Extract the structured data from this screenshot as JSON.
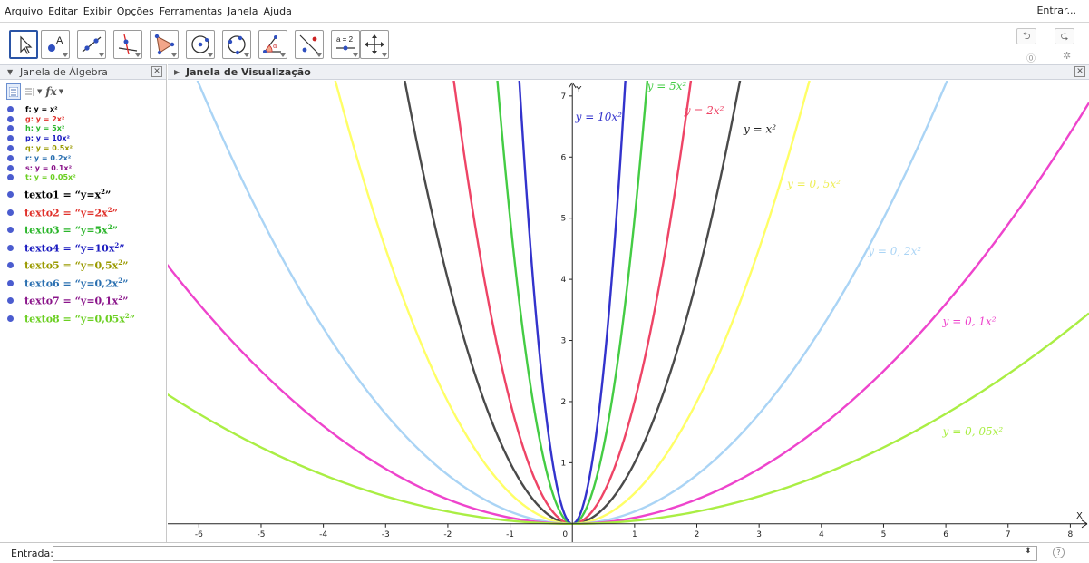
{
  "menu": [
    "Arquivo",
    "Editar",
    "Exibir",
    "Opções",
    "Ferramentas",
    "Janela",
    "Ajuda"
  ],
  "login_label": "Entrar...",
  "toolbar": {
    "tools": [
      "move-tool",
      "point-tool",
      "line-tool",
      "perpendicular-tool",
      "polygon-tool",
      "circle-tool",
      "circle-three-points-tool",
      "angle-tool",
      "reflect-tool",
      "slider-tool",
      "move-view-tool"
    ],
    "slider_label": "a = 2",
    "undo_icon": "undo-icon",
    "redo_icon": "redo-icon"
  },
  "algebra": {
    "title": "Janela de Álgebra",
    "fx_label": "fx",
    "functions": [
      {
        "text": "f: y = x²",
        "color": "#000000"
      },
      {
        "text": "g: y = 2x²",
        "color": "#e0302a"
      },
      {
        "text": "h: y = 5x²",
        "color": "#2bb52b"
      },
      {
        "text": "p: y = 10x²",
        "color": "#1a1abf"
      },
      {
        "text": "q: y = 0.5x²",
        "color": "#9a9a00"
      },
      {
        "text": "r: y = 0.2x²",
        "color": "#2a6fb0"
      },
      {
        "text": "s: y = 0.1x²",
        "color": "#8a148a"
      },
      {
        "text": "t: y = 0.05x²",
        "color": "#6bcf22"
      }
    ],
    "texts": [
      {
        "name": "texto1",
        "value": "y=x",
        "color": "#000000"
      },
      {
        "name": "texto2",
        "value": "y=2x",
        "color": "#e0302a"
      },
      {
        "name": "texto3",
        "value": "y=5x",
        "color": "#2bb52b"
      },
      {
        "name": "texto4",
        "value": "y=10x",
        "color": "#1a1abf"
      },
      {
        "name": "texto5",
        "value": "y=0,5x",
        "color": "#9a9a00"
      },
      {
        "name": "texto6",
        "value": "y=0,2x",
        "color": "#2a6fb0"
      },
      {
        "name": "texto7",
        "value": "y=0,1x",
        "color": "#8a148a"
      },
      {
        "name": "texto8",
        "value": "y=0,05x",
        "color": "#6bcf22"
      }
    ]
  },
  "graphics": {
    "title": "Janela de Visualização",
    "axis_x_label": "X",
    "axis_y_label": "Y"
  },
  "chart_data": {
    "type": "line",
    "xlim": [
      -6.5,
      8.3
    ],
    "ylim": [
      -0.3,
      7.25
    ],
    "x_ticks": [
      -6,
      -5,
      -4,
      -3,
      -2,
      -1,
      0,
      1,
      2,
      3,
      4,
      5,
      6,
      7,
      8
    ],
    "y_ticks": [
      1,
      2,
      3,
      4,
      5,
      6,
      7
    ],
    "origin_label": "0",
    "series": [
      {
        "name": "f",
        "coefficient": 1,
        "color": "#4a4a4a",
        "label": "y = x²",
        "label_x": 2.75,
        "label_y": 6.4
      },
      {
        "name": "g",
        "coefficient": 2,
        "color": "#ee4466",
        "label": "y = 2x²",
        "label_x": 1.8,
        "label_y": 6.7
      },
      {
        "name": "h",
        "coefficient": 5,
        "color": "#44cc44",
        "label": "y = 5x²",
        "label_x": 1.2,
        "label_y": 7.1
      },
      {
        "name": "p",
        "coefficient": 10,
        "color": "#3333cc",
        "label": "y = 10x²",
        "label_x": 0.05,
        "label_y": 6.6
      },
      {
        "name": "q",
        "coefficient": 0.5,
        "color": "#ffff66",
        "label": "y = 0, 5x²",
        "label_x": 3.45,
        "label_y": 5.5
      },
      {
        "name": "r",
        "coefficient": 0.2,
        "color": "#aad4f5",
        "label": "y = 0, 2x²",
        "label_x": 4.75,
        "label_y": 4.4
      },
      {
        "name": "s",
        "coefficient": 0.1,
        "color": "#ee44cc",
        "label": "y = 0, 1x²",
        "label_x": 5.95,
        "label_y": 3.25
      },
      {
        "name": "t",
        "coefficient": 0.05,
        "color": "#aaee44",
        "label": "y = 0, 05x²",
        "label_x": 5.95,
        "label_y": 1.45
      }
    ]
  },
  "input": {
    "label": "Entrada:",
    "value": ""
  }
}
